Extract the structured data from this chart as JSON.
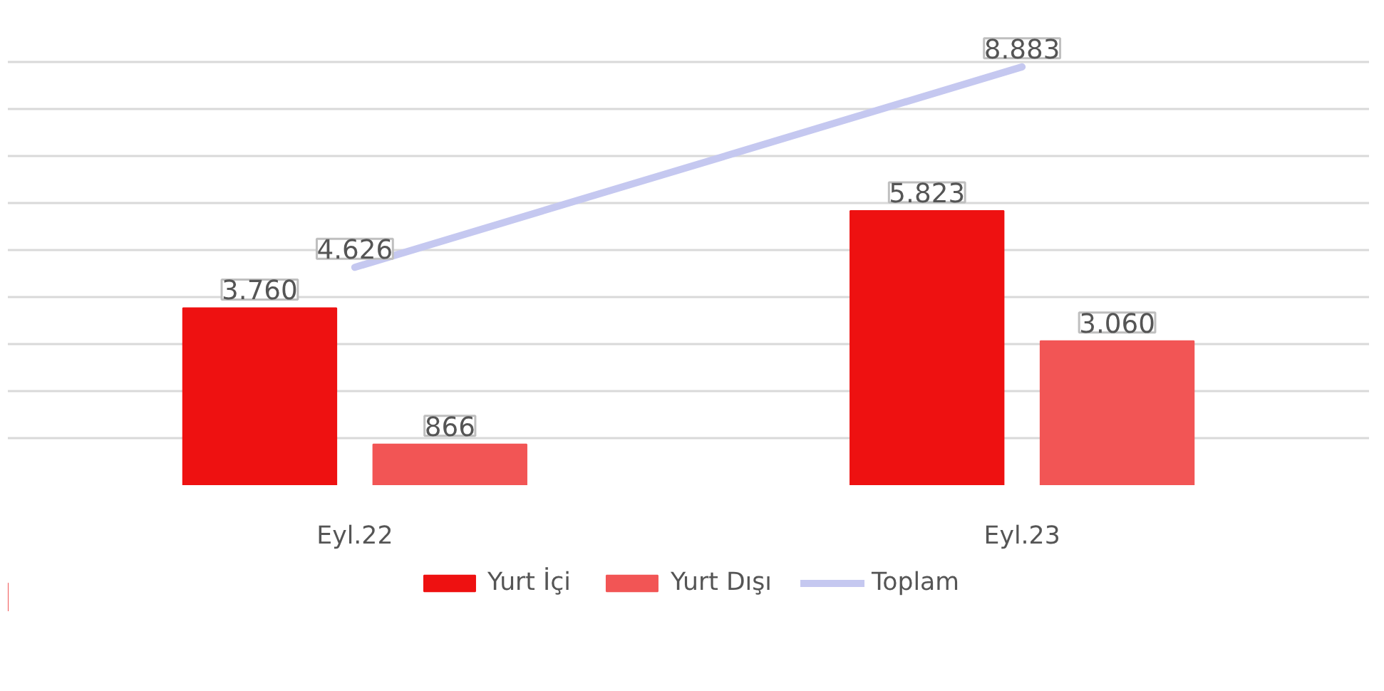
{
  "chart_data": {
    "type": "bar",
    "categories": [
      "Eyl.22",
      "Eyl.23"
    ],
    "series": [
      {
        "name": "Yurt İçi",
        "color": "#ee1111",
        "values": [
          3760,
          5823
        ],
        "value_labels": [
          "3.760",
          "5.823"
        ]
      },
      {
        "name": "Yurt Dışı",
        "color": "#f25555",
        "values": [
          866,
          3060
        ],
        "value_labels": [
          "866",
          "3.060"
        ]
      },
      {
        "name": "Toplam",
        "type": "line",
        "color": "#c5c8f0",
        "values": [
          4626,
          8883
        ],
        "value_labels": [
          "4.626",
          "8.883"
        ]
      }
    ],
    "grid": "y",
    "legend": "bottom",
    "tick_labels": "x"
  }
}
